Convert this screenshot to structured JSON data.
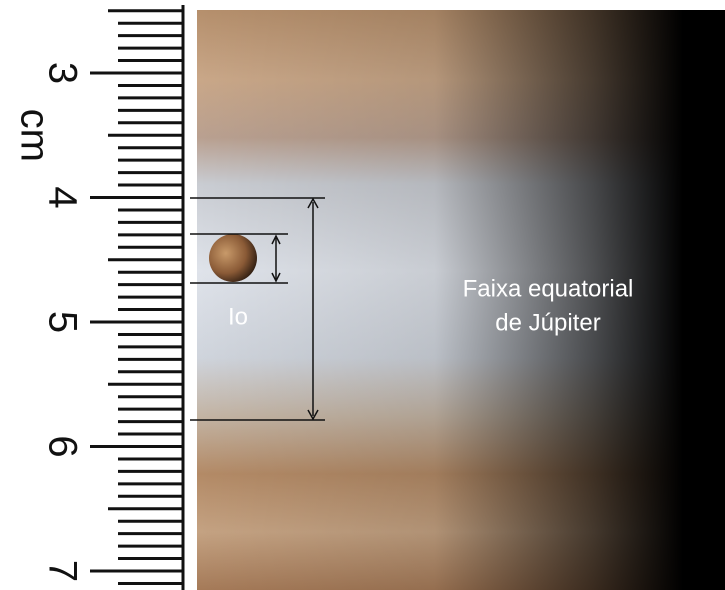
{
  "ruler": {
    "marks": [
      3,
      4,
      5,
      6,
      7
    ],
    "unit": "cm"
  },
  "labels": {
    "moon": "Io",
    "band": [
      "Faixa equatorial",
      "de Júpiter"
    ]
  }
}
